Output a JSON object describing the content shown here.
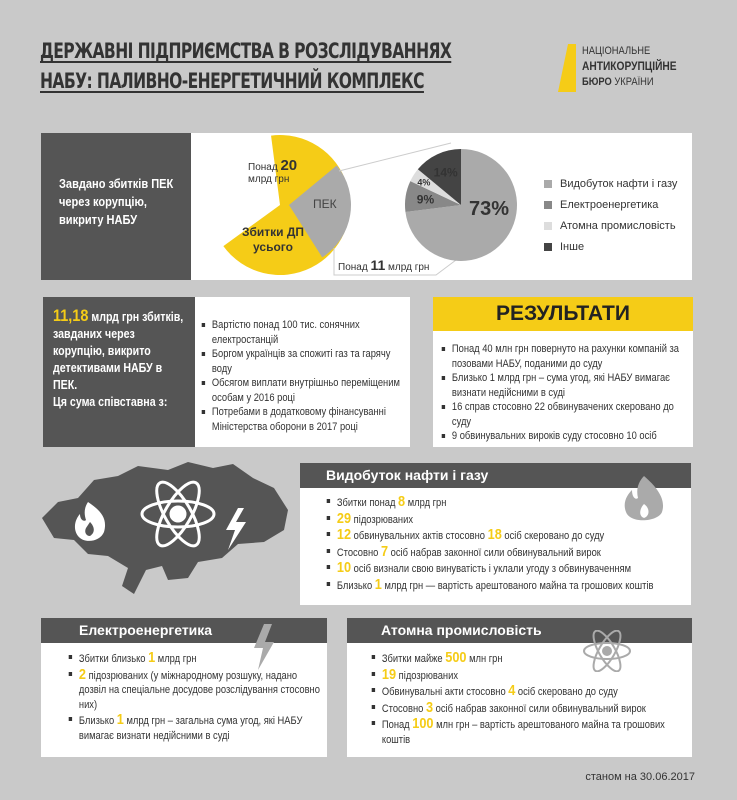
{
  "header": {
    "title_line1": "ДЕРЖАВНІ ПІДПРИЄМСТВА В РОЗСЛІДУВАННЯХ",
    "title_line2": "НАБУ: ПАЛИВНО-ЕНЕРГЕТИЧНИЙ КОМПЛЕКС",
    "logo": {
      "line1": "НАЦІОНАЛЬНЕ",
      "line2": "АНТИКОРУПЦІЙНЕ",
      "line3_bold": "БЮРО",
      "line3": "УКРАЇНИ"
    }
  },
  "colors": {
    "accent": "#f5cc17",
    "dark": "#555555",
    "background": "#c9c9c9"
  },
  "damage": {
    "label": "Завдано збитків ПЕК через корупцію, викриту НАБУ",
    "total_prefix": "Понад",
    "total_value": "20",
    "total_unit": "млрд грн",
    "total_caption": "Збитки ДП усього",
    "pek_label": "ПЕК",
    "pek_prefix": "Понад",
    "pek_value": "11",
    "pek_unit": "млрд грн"
  },
  "chart_data": {
    "type": "pie",
    "categories": [
      "Видобуток нафти і газу",
      "Електроенергетика",
      "Атомна промисловість",
      "Інше"
    ],
    "values": [
      73,
      9,
      4,
      14
    ],
    "labels": [
      "73%",
      "9%",
      "4%",
      "14%"
    ],
    "colors": [
      "#aaaaaa",
      "#888888",
      "#dddddd",
      "#444444"
    ],
    "legend": "right"
  },
  "comparison": {
    "amount": "11,18",
    "amount_unit": "млрд грн",
    "text": "збитків, завданих через корупцію, викрито детективами НАБУ в ПЕК.",
    "text2": "Ця сума співставна з:",
    "items": [
      [
        {
          "t": "Вартістю понад 100 тис. сонячних електростанцій"
        }
      ],
      [
        {
          "t": "Боргом українців за спожиті газ та гарячу воду"
        }
      ],
      [
        {
          "t": "Обсягом виплати внутрішньо переміщеним особам у 2016 році"
        }
      ],
      [
        {
          "t": "Потребами в додатковому фінансуванні Міністерства оборони в 2017 році"
        }
      ]
    ]
  },
  "results": {
    "title": "РЕЗУЛЬТАТИ",
    "items": [
      [
        {
          "t": "Понад 40 млн грн повернуто на рахунки компаній за позовами НАБУ, поданими до суду"
        }
      ],
      [
        {
          "t": "Близько 1 млрд грн – сума угод, які НАБУ вимагає визнати недійсними в суді"
        }
      ],
      [
        {
          "t": "16 справ стосовно 22 обвинувачених скеровано до суду"
        }
      ],
      [
        {
          "t": "9 обвинувальних вироків суду стосовно 10 осіб"
        }
      ]
    ]
  },
  "oil": {
    "title": "Видобуток нафти і газу",
    "items": [
      [
        {
          "t": "Збитки понад "
        },
        {
          "h": "8"
        },
        {
          "t": " млрд грн"
        }
      ],
      [
        {
          "h": "29"
        },
        {
          "t": " підозрюваних"
        }
      ],
      [
        {
          "h": "12"
        },
        {
          "t": " обвинувальних актів стосовно "
        },
        {
          "h": "18"
        },
        {
          "t": " осіб скеровано до суду"
        }
      ],
      [
        {
          "t": "Стосовно "
        },
        {
          "h": "7"
        },
        {
          "t": " осіб набрав законної сили обвинувальний вирок"
        }
      ],
      [
        {
          "h": "10"
        },
        {
          "t": " осіб визнали свою винуватість і уклали угоду з обвинуваченням"
        }
      ],
      [
        {
          "t": "Близько "
        },
        {
          "h": "1"
        },
        {
          "t": " млрд грн — вартість арештованого майна та грошових коштів"
        }
      ]
    ]
  },
  "electro": {
    "title": "Електроенергетика",
    "items": [
      [
        {
          "t": "Збитки близько "
        },
        {
          "h": "1"
        },
        {
          "t": " млрд грн"
        }
      ],
      [
        {
          "h": "2"
        },
        {
          "t": " підозрюваних (у міжнародному розшуку, надано дозвіл на спеціальне досудове розслідування стосовно них)"
        }
      ],
      [
        {
          "t": "Близько "
        },
        {
          "h": "1"
        },
        {
          "t": " млрд грн – загальна сума угод, які НАБУ вимагає визнати недійсними в суді"
        }
      ]
    ]
  },
  "atom": {
    "title": "Атомна промисловість",
    "items": [
      [
        {
          "t": "Збитки майже "
        },
        {
          "h": "500"
        },
        {
          "t": " млн грн"
        }
      ],
      [
        {
          "h": "19"
        },
        {
          "t": " підозрюваних"
        }
      ],
      [
        {
          "t": "Обвинувальні акти стосовно "
        },
        {
          "h": "4"
        },
        {
          "t": " осіб скеровано до суду"
        }
      ],
      [
        {
          "t": "Стосовно "
        },
        {
          "h": "3"
        },
        {
          "t": " осіб набрав законної сили обвинувальний вирок"
        }
      ],
      [
        {
          "t": "Понад "
        },
        {
          "h": "100"
        },
        {
          "t": " млн грн – вартість арештованого майна та грошових коштів"
        }
      ]
    ]
  },
  "footer": {
    "date": "станом на 30.06.2017"
  }
}
